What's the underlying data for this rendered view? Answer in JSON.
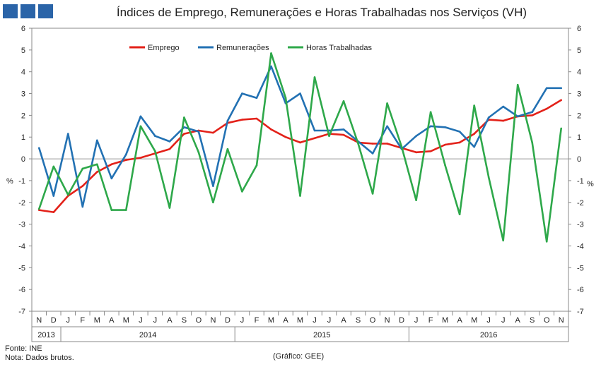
{
  "chart_data": {
    "type": "line",
    "title": "Índices de Emprego, Remunerações e Horas Trabalhadas nos Serviços (VH)",
    "ylabel_left": "%",
    "ylabel_right": "%",
    "ylim": [
      -7,
      6
    ],
    "yticks": [
      6,
      5,
      4,
      3,
      2,
      1,
      0,
      -1,
      -2,
      -3,
      -4,
      -5,
      -6,
      -7
    ],
    "categories": [
      "N",
      "D",
      "J",
      "F",
      "M",
      "A",
      "M",
      "J",
      "J",
      "A",
      "S",
      "O",
      "N",
      "D",
      "J",
      "F",
      "M",
      "A",
      "M",
      "J",
      "J",
      "A",
      "S",
      "O",
      "N",
      "D",
      "J",
      "F",
      "M",
      "A",
      "M",
      "J",
      "J",
      "A",
      "S",
      "O",
      "N"
    ],
    "years": [
      {
        "label": "2013",
        "start": 0,
        "end": 1
      },
      {
        "label": "2014",
        "start": 2,
        "end": 13
      },
      {
        "label": "2015",
        "start": 14,
        "end": 25
      },
      {
        "label": "2016",
        "start": 26,
        "end": 36
      }
    ],
    "series": [
      {
        "name": "Emprego",
        "color": "#e32119",
        "values": [
          -2.35,
          -2.45,
          -1.7,
          -1.25,
          -0.6,
          -0.25,
          -0.05,
          0.05,
          0.25,
          0.45,
          1.15,
          1.3,
          1.2,
          1.65,
          1.8,
          1.85,
          1.35,
          1.0,
          0.75,
          0.95,
          1.15,
          1.1,
          0.75,
          0.7,
          0.7,
          0.5,
          0.3,
          0.35,
          0.65,
          0.75,
          1.15,
          1.8,
          1.75,
          1.95,
          2.0,
          2.3,
          2.7
        ]
      },
      {
        "name": "Remunerações",
        "color": "#2271b3",
        "values": [
          0.5,
          -1.7,
          1.15,
          -2.2,
          0.85,
          -0.9,
          0.2,
          1.95,
          1.05,
          0.8,
          1.45,
          1.25,
          -1.25,
          1.75,
          3.0,
          2.8,
          4.25,
          2.55,
          3.0,
          1.3,
          1.3,
          1.35,
          0.8,
          0.25,
          1.5,
          0.45,
          1.05,
          1.5,
          1.45,
          1.25,
          0.55,
          1.9,
          2.4,
          1.95,
          2.15,
          3.25,
          3.25
        ]
      },
      {
        "name": "Horas Trabalhadas",
        "color": "#2ea84a",
        "values": [
          -2.3,
          -0.35,
          -1.65,
          -0.45,
          -0.25,
          -2.35,
          -2.35,
          1.5,
          0.35,
          -2.25,
          1.9,
          0.3,
          -2.0,
          0.45,
          -1.5,
          -0.3,
          4.85,
          2.8,
          -1.7,
          3.75,
          1.05,
          2.65,
          0.7,
          -1.6,
          2.55,
          0.55,
          -1.9,
          2.15,
          -0.3,
          -2.55,
          2.45,
          -0.85,
          -3.75,
          3.4,
          0.75,
          -3.8,
          1.4
        ]
      }
    ]
  },
  "footer": {
    "source": "Fonte: INE",
    "note": "Nota: Dados brutos.",
    "credit": "(Gráfico: GEE)"
  }
}
